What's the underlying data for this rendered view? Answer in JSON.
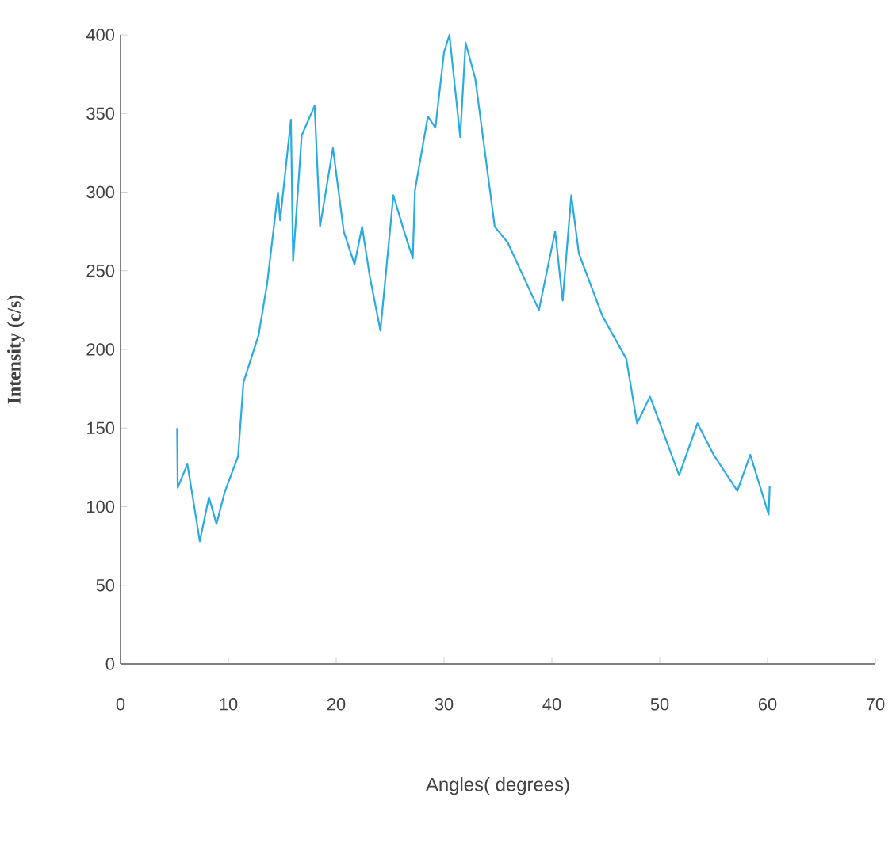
{
  "chart_data": {
    "type": "line",
    "xlabel": "Angles( degrees)",
    "ylabel": "Intensity  (c/s)",
    "xlim": [
      0,
      70
    ],
    "xticks": [
      0,
      10,
      20,
      30,
      40,
      50,
      60,
      70
    ],
    "ylim": [
      0,
      400
    ],
    "yticks": [
      0,
      50,
      100,
      150,
      200,
      250,
      300,
      350,
      400
    ],
    "grid": false,
    "marker": "none",
    "line_style": "solid",
    "series": [
      {
        "color": "#29abe2",
        "x": [
          5.25,
          5.3,
          6.2,
          7.35,
          8.2,
          8.9,
          9.65,
          10.9,
          11.4,
          12.8,
          13.6,
          14.6,
          14.8,
          15.8,
          16.0,
          16.8,
          18.0,
          18.5,
          19.7,
          20.7,
          21.7,
          22.4,
          23.1,
          24.1,
          25.3,
          26.3,
          27.1,
          27.3,
          28.5,
          29.2,
          30.0,
          30.5,
          31.5,
          32.0,
          32.9,
          34.7,
          35.9,
          38.8,
          40.3,
          41.0,
          41.8,
          42.5,
          44.7,
          46.9,
          47.9,
          49.1,
          51.8,
          53.5,
          55.0,
          57.2,
          58.4,
          60.1,
          60.2
        ],
        "values": [
          150,
          112,
          127,
          78,
          106,
          89,
          109,
          132,
          179,
          209,
          242,
          300,
          282,
          346,
          256,
          336,
          355,
          278,
          328,
          275,
          254,
          278,
          247,
          212,
          298,
          275,
          258,
          301,
          348,
          341,
          389,
          400,
          335,
          395,
          372,
          278,
          268,
          225,
          275,
          231,
          298,
          261,
          221,
          194,
          153,
          170,
          120,
          153,
          133,
          110,
          133,
          95,
          113
        ]
      }
    ]
  }
}
